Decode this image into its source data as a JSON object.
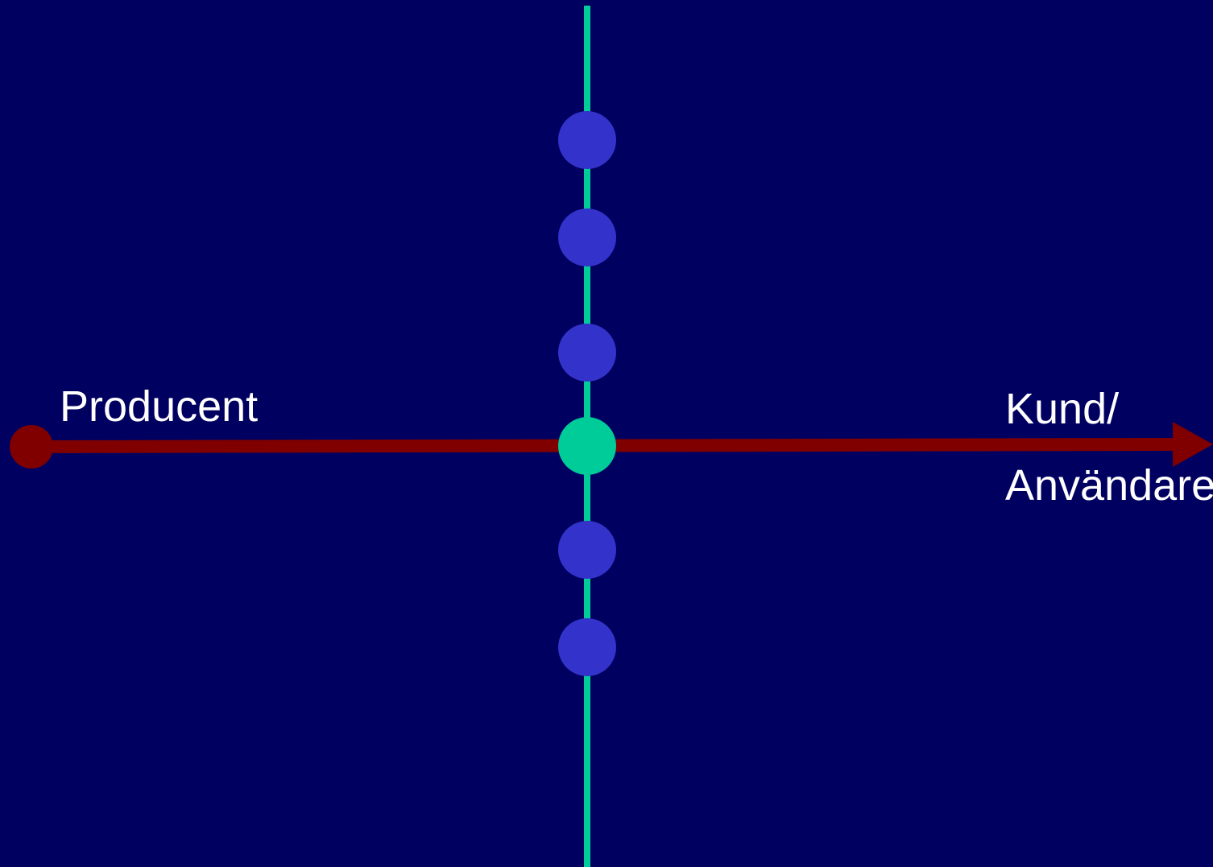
{
  "labels": {
    "producer": "Producent",
    "customer_line1": "Kund/",
    "customer_line2": "Användare"
  },
  "colors": {
    "background": "#000060",
    "flow_line": "#800000",
    "vertical_line": "#00CC99",
    "node": "#3333CC",
    "center_node": "#00CC99",
    "text": "#FFFFFF"
  },
  "nodes": {
    "above_count": 3,
    "below_count": 2
  }
}
